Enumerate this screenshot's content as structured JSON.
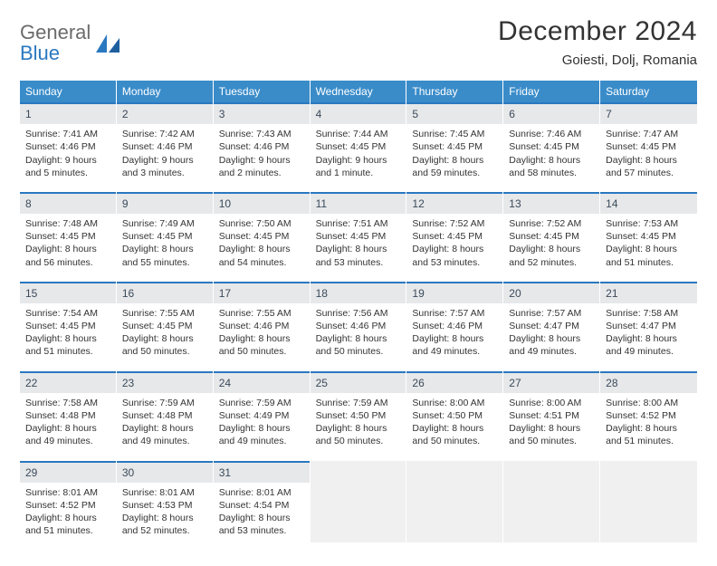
{
  "brand": {
    "word1": "General",
    "word2": "Blue"
  },
  "title": "December 2024",
  "location": "Goiesti, Dolj, Romania",
  "colors": {
    "header_bg": "#3a8cc9",
    "header_text": "#ffffff",
    "daynum_bg": "#e7e8ea",
    "daynum_border_top": "#2a78c0",
    "body_text": "#333333",
    "logo_gray": "#6b6b6b",
    "logo_blue": "#2a78c0",
    "empty_bg": "#f0f0f0"
  },
  "typography": {
    "title_fontsize": 30,
    "location_fontsize": 15,
    "dow_fontsize": 12,
    "daynum_fontsize": 12,
    "body_fontsize": 10.5
  },
  "days_of_week": [
    "Sunday",
    "Monday",
    "Tuesday",
    "Wednesday",
    "Thursday",
    "Friday",
    "Saturday"
  ],
  "weeks": [
    [
      {
        "num": "1",
        "sunrise": "7:41 AM",
        "sunset": "4:46 PM",
        "daylight": "9 hours and 5 minutes."
      },
      {
        "num": "2",
        "sunrise": "7:42 AM",
        "sunset": "4:46 PM",
        "daylight": "9 hours and 3 minutes."
      },
      {
        "num": "3",
        "sunrise": "7:43 AM",
        "sunset": "4:46 PM",
        "daylight": "9 hours and 2 minutes."
      },
      {
        "num": "4",
        "sunrise": "7:44 AM",
        "sunset": "4:45 PM",
        "daylight": "9 hours and 1 minute."
      },
      {
        "num": "5",
        "sunrise": "7:45 AM",
        "sunset": "4:45 PM",
        "daylight": "8 hours and 59 minutes."
      },
      {
        "num": "6",
        "sunrise": "7:46 AM",
        "sunset": "4:45 PM",
        "daylight": "8 hours and 58 minutes."
      },
      {
        "num": "7",
        "sunrise": "7:47 AM",
        "sunset": "4:45 PM",
        "daylight": "8 hours and 57 minutes."
      }
    ],
    [
      {
        "num": "8",
        "sunrise": "7:48 AM",
        "sunset": "4:45 PM",
        "daylight": "8 hours and 56 minutes."
      },
      {
        "num": "9",
        "sunrise": "7:49 AM",
        "sunset": "4:45 PM",
        "daylight": "8 hours and 55 minutes."
      },
      {
        "num": "10",
        "sunrise": "7:50 AM",
        "sunset": "4:45 PM",
        "daylight": "8 hours and 54 minutes."
      },
      {
        "num": "11",
        "sunrise": "7:51 AM",
        "sunset": "4:45 PM",
        "daylight": "8 hours and 53 minutes."
      },
      {
        "num": "12",
        "sunrise": "7:52 AM",
        "sunset": "4:45 PM",
        "daylight": "8 hours and 53 minutes."
      },
      {
        "num": "13",
        "sunrise": "7:52 AM",
        "sunset": "4:45 PM",
        "daylight": "8 hours and 52 minutes."
      },
      {
        "num": "14",
        "sunrise": "7:53 AM",
        "sunset": "4:45 PM",
        "daylight": "8 hours and 51 minutes."
      }
    ],
    [
      {
        "num": "15",
        "sunrise": "7:54 AM",
        "sunset": "4:45 PM",
        "daylight": "8 hours and 51 minutes."
      },
      {
        "num": "16",
        "sunrise": "7:55 AM",
        "sunset": "4:45 PM",
        "daylight": "8 hours and 50 minutes."
      },
      {
        "num": "17",
        "sunrise": "7:55 AM",
        "sunset": "4:46 PM",
        "daylight": "8 hours and 50 minutes."
      },
      {
        "num": "18",
        "sunrise": "7:56 AM",
        "sunset": "4:46 PM",
        "daylight": "8 hours and 50 minutes."
      },
      {
        "num": "19",
        "sunrise": "7:57 AM",
        "sunset": "4:46 PM",
        "daylight": "8 hours and 49 minutes."
      },
      {
        "num": "20",
        "sunrise": "7:57 AM",
        "sunset": "4:47 PM",
        "daylight": "8 hours and 49 minutes."
      },
      {
        "num": "21",
        "sunrise": "7:58 AM",
        "sunset": "4:47 PM",
        "daylight": "8 hours and 49 minutes."
      }
    ],
    [
      {
        "num": "22",
        "sunrise": "7:58 AM",
        "sunset": "4:48 PM",
        "daylight": "8 hours and 49 minutes."
      },
      {
        "num": "23",
        "sunrise": "7:59 AM",
        "sunset": "4:48 PM",
        "daylight": "8 hours and 49 minutes."
      },
      {
        "num": "24",
        "sunrise": "7:59 AM",
        "sunset": "4:49 PM",
        "daylight": "8 hours and 49 minutes."
      },
      {
        "num": "25",
        "sunrise": "7:59 AM",
        "sunset": "4:50 PM",
        "daylight": "8 hours and 50 minutes."
      },
      {
        "num": "26",
        "sunrise": "8:00 AM",
        "sunset": "4:50 PM",
        "daylight": "8 hours and 50 minutes."
      },
      {
        "num": "27",
        "sunrise": "8:00 AM",
        "sunset": "4:51 PM",
        "daylight": "8 hours and 50 minutes."
      },
      {
        "num": "28",
        "sunrise": "8:00 AM",
        "sunset": "4:52 PM",
        "daylight": "8 hours and 51 minutes."
      }
    ],
    [
      {
        "num": "29",
        "sunrise": "8:01 AM",
        "sunset": "4:52 PM",
        "daylight": "8 hours and 51 minutes."
      },
      {
        "num": "30",
        "sunrise": "8:01 AM",
        "sunset": "4:53 PM",
        "daylight": "8 hours and 52 minutes."
      },
      {
        "num": "31",
        "sunrise": "8:01 AM",
        "sunset": "4:54 PM",
        "daylight": "8 hours and 53 minutes."
      },
      null,
      null,
      null,
      null
    ]
  ],
  "labels": {
    "sunrise": "Sunrise: ",
    "sunset": "Sunset: ",
    "daylight": "Daylight: "
  }
}
